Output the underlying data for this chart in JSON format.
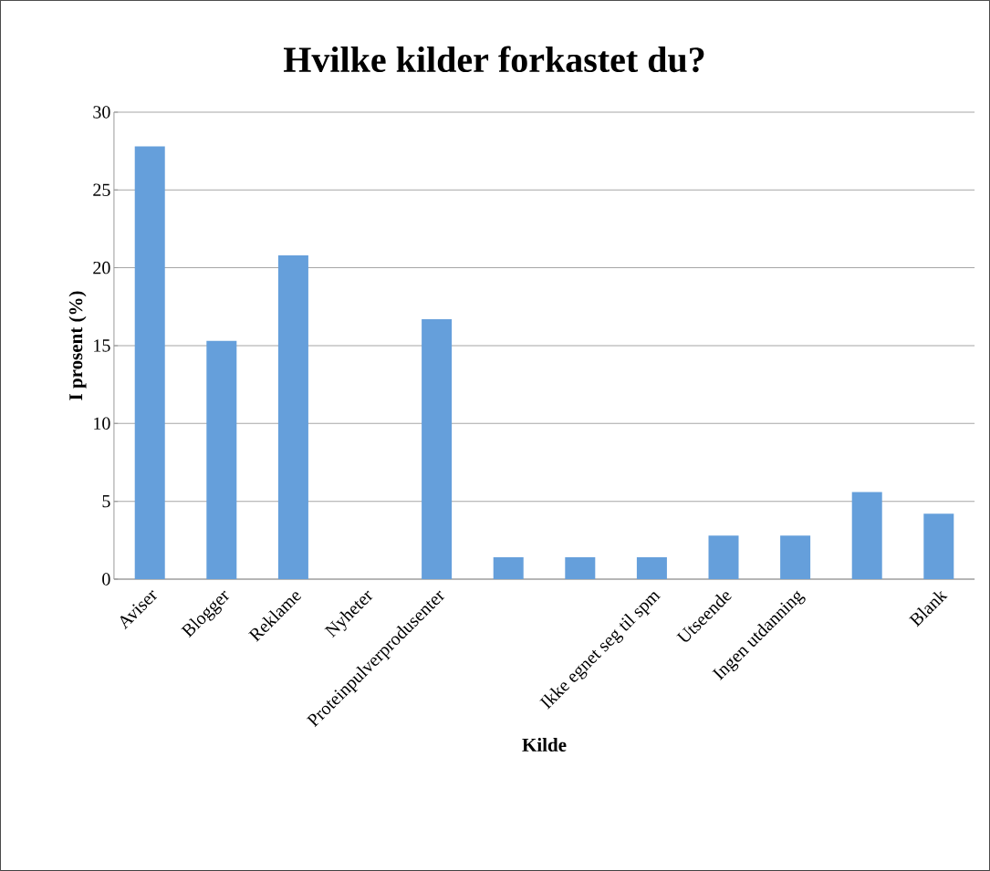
{
  "chart_data": {
    "type": "bar",
    "title": "Hvilke kilder forkastet du?",
    "xlabel": "Kilde",
    "ylabel": "I prosent (%)",
    "categories": [
      "Aviser",
      "Blogger",
      "Reklame",
      "Nyheter",
      "Proteinpulverprodusenter",
      null,
      null,
      "Ikke egnet seg til spm",
      "Utseende",
      "Ingen utdanning",
      null,
      "Blank"
    ],
    "values": [
      27.8,
      15.3,
      20.8,
      0,
      16.7,
      1.4,
      1.4,
      1.4,
      2.8,
      2.8,
      5.6,
      4.2
    ],
    "color": "#659fdb",
    "ylim": [
      0,
      30
    ],
    "yticks": [
      0,
      5,
      10,
      15,
      20,
      25,
      30
    ],
    "grid": "y"
  }
}
